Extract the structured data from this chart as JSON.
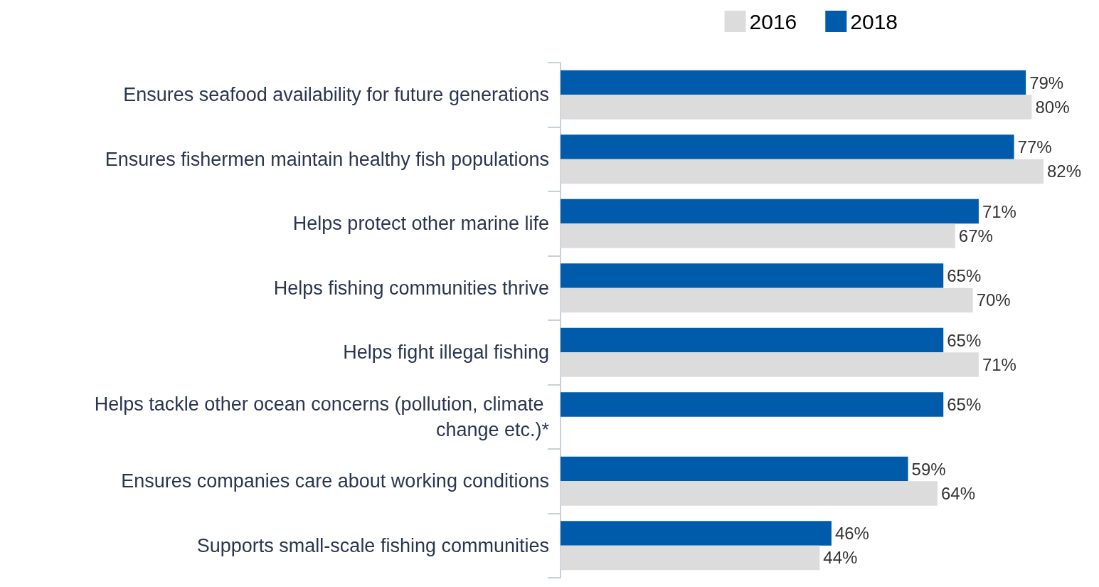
{
  "chart_data": {
    "type": "bar",
    "orientation": "horizontal",
    "legend": "top right",
    "categories": [
      "Ensures seafood availability for future generations",
      "Ensures fishermen maintain healthy fish populations",
      "Helps protect other marine life",
      "Helps fishing communities thrive",
      "Helps fight illegal fishing",
      "Helps tackle other ocean concerns (pollution, climate change etc.)*",
      "Ensures companies care about working conditions",
      "Supports small-scale fishing communities"
    ],
    "series": [
      {
        "name": "2016",
        "color": "#dcdcdc",
        "values": [
          80,
          82,
          67,
          70,
          71,
          null,
          64,
          44
        ],
        "value_labels": [
          "80%",
          "82%",
          "67%",
          "70%",
          "71%",
          null,
          "64%",
          "44%"
        ]
      },
      {
        "name": "2018",
        "color": "#005bab",
        "values": [
          79,
          77,
          71,
          65,
          65,
          65,
          59,
          46
        ],
        "value_labels": [
          "79%",
          "77%",
          "71%",
          "65%",
          "65%",
          "65%",
          "59%",
          "46%"
        ]
      }
    ]
  }
}
